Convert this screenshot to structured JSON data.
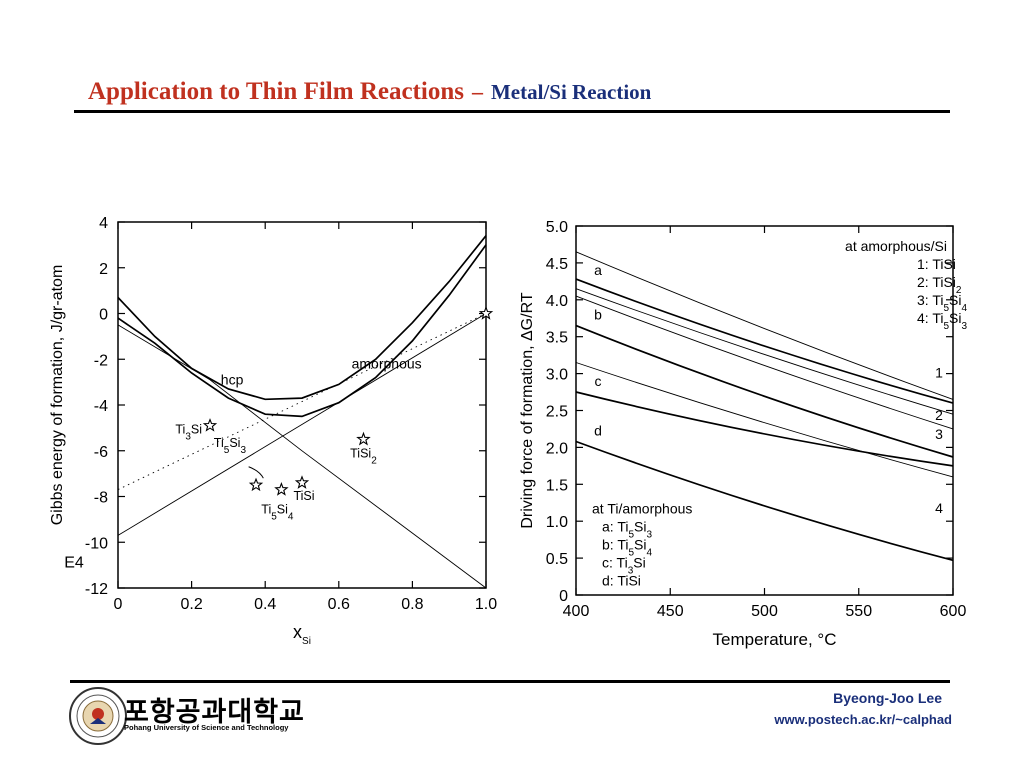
{
  "header": {
    "title_main": "Application to Thin Film Reactions",
    "title_dash": "–",
    "title_sub": "Metal/Si Reaction"
  },
  "footer": {
    "university_korean": "포항공과대학교",
    "university_english": "Pohang University of Science and Technology",
    "author": "Byeong-Joo Lee",
    "website": "www.postech.ac.kr/~calphad"
  },
  "chart_data": [
    {
      "type": "line",
      "title": "",
      "xlabel_main": "x",
      "xlabel_sub": "Si",
      "ylabel": "Gibbs energy of formation, J/gr-atom",
      "scale_label": "E4",
      "xlim": [
        0,
        1.0
      ],
      "ylim": [
        -12,
        4
      ],
      "x_ticks": [
        "0",
        "0.2",
        "0.4",
        "0.6",
        "0.8",
        "1.0"
      ],
      "y_ticks": [
        "4",
        "2",
        "0",
        "-2",
        "-4",
        "-6",
        "-8",
        "-10",
        "-12"
      ],
      "series": [
        {
          "style": "solid",
          "points": [
            [
              0,
              0.7
            ],
            [
              0.1,
              -1.0
            ],
            [
              0.2,
              -2.4
            ],
            [
              0.3,
              -3.3
            ],
            [
              0.4,
              -3.75
            ],
            [
              0.5,
              -3.7
            ],
            [
              0.6,
              -3.1
            ],
            [
              0.7,
              -2.0
            ],
            [
              0.8,
              -0.4
            ],
            [
              0.9,
              1.4
            ],
            [
              1.0,
              3.4
            ]
          ]
        },
        {
          "style": "solid",
          "points": [
            [
              0,
              -0.2
            ],
            [
              0.1,
              -1.3
            ],
            [
              0.2,
              -2.6
            ],
            [
              0.3,
              -3.7
            ],
            [
              0.4,
              -4.4
            ],
            [
              0.5,
              -4.5
            ],
            [
              0.6,
              -3.9
            ],
            [
              0.7,
              -2.8
            ],
            [
              0.8,
              -1.2
            ],
            [
              0.9,
              0.8
            ],
            [
              1.0,
              3.0
            ]
          ]
        },
        {
          "style": "thin",
          "points": [
            [
              0,
              -0.5
            ],
            [
              0.25,
              -2.9
            ],
            [
              0.5,
              -6.0
            ],
            [
              0.75,
              -9.0
            ],
            [
              1.0,
              -12.0
            ]
          ]
        },
        {
          "style": "thin",
          "points": [
            [
              0,
              -9.7
            ],
            [
              1.0,
              0
            ]
          ]
        },
        {
          "style": "dotted",
          "points": [
            [
              0,
              -7.7
            ],
            [
              1.0,
              0
            ]
          ]
        }
      ],
      "annotations": [
        {
          "text": "hcp",
          "x": 0.31,
          "y": -3.1
        },
        {
          "text": "amorphous",
          "x": 0.73,
          "y": -2.4
        }
      ],
      "compounds": [
        {
          "name": "Ti",
          "sub": "3",
          "name2": "Si",
          "sub2": "",
          "x": 0.25,
          "y": -4.9
        },
        {
          "name": "TiSi",
          "sub": "2",
          "name2": "",
          "sub2": "",
          "x": 0.667,
          "y": -5.5
        },
        {
          "name": "TiSi",
          "sub": "",
          "name2": "",
          "sub2": "",
          "x": 0.5,
          "y": -7.4
        },
        {
          "name": "Ti",
          "sub": "5",
          "name2": "Si",
          "sub2": "4",
          "x": 0.444,
          "y": -7.7
        },
        {
          "name": "Ti",
          "sub": "5",
          "name2": "Si",
          "sub2": "3",
          "x": 0.375,
          "y": -7.5
        },
        {
          "name": "",
          "sub": "",
          "name2": "",
          "sub2": "",
          "x": 1.0,
          "y": 0
        }
      ]
    },
    {
      "type": "line",
      "title": "",
      "xlabel": "Temperature, °C",
      "ylabel": "Driving force of formation, ΔG/RT",
      "xlim": [
        400,
        600
      ],
      "ylim": [
        0,
        5.0
      ],
      "x_ticks": [
        "400",
        "450",
        "500",
        "550",
        "600"
      ],
      "y_ticks": [
        "5.0",
        "4.5",
        "4.0",
        "3.5",
        "3.0",
        "2.5",
        "2.0",
        "1.5",
        "1.0",
        "0.5",
        "0"
      ],
      "series": [
        {
          "name": "1",
          "style": "thin",
          "values": [
            [
              400,
              4.65
            ],
            [
              600,
              2.65
            ]
          ]
        },
        {
          "name": "2",
          "style": "thin",
          "values": [
            [
              400,
              4.15
            ],
            [
              600,
              2.45
            ]
          ]
        },
        {
          "name": "3",
          "style": "thin",
          "values": [
            [
              400,
              4.05
            ],
            [
              600,
              2.25
            ]
          ]
        },
        {
          "name": "4",
          "style": "thin",
          "values": [
            [
              400,
              3.15
            ],
            [
              600,
              1.6
            ]
          ]
        },
        {
          "name": "a",
          "style": "thick",
          "values": [
            [
              400,
              4.28
            ],
            [
              600,
              2.6
            ]
          ]
        },
        {
          "name": "b",
          "style": "thick",
          "values": [
            [
              400,
              3.65
            ],
            [
              600,
              1.87
            ]
          ]
        },
        {
          "name": "c",
          "style": "thick",
          "values": [
            [
              400,
              2.75
            ],
            [
              600,
              1.75
            ]
          ]
        },
        {
          "name": "d",
          "style": "thick",
          "values": [
            [
              400,
              2.08
            ],
            [
              600,
              0.47
            ]
          ]
        }
      ],
      "legend_amorphous_si": {
        "heading": "at amorphous/Si",
        "items": [
          {
            "key": "1:",
            "parts": [
              {
                "t": "TiSi"
              }
            ]
          },
          {
            "key": "2:",
            "parts": [
              {
                "t": "TiSi"
              },
              {
                "s": "2"
              }
            ]
          },
          {
            "key": "3:",
            "parts": [
              {
                "t": "Ti"
              },
              {
                "s": "5"
              },
              {
                "t": "Si"
              },
              {
                "s": "4"
              }
            ]
          },
          {
            "key": "4:",
            "parts": [
              {
                "t": "Ti"
              },
              {
                "s": "5"
              },
              {
                "t": "Si"
              },
              {
                "s": "3"
              }
            ]
          }
        ]
      },
      "legend_ti_amorphous": {
        "heading": "at Ti/amorphous",
        "items": [
          {
            "key": "a:",
            "parts": [
              {
                "t": "Ti"
              },
              {
                "s": "5"
              },
              {
                "t": "Si"
              },
              {
                "s": "3"
              }
            ]
          },
          {
            "key": "b:",
            "parts": [
              {
                "t": "Ti"
              },
              {
                "s": "5"
              },
              {
                "t": "Si"
              },
              {
                "s": "4"
              }
            ]
          },
          {
            "key": "c:",
            "parts": [
              {
                "t": "Ti"
              },
              {
                "s": "3"
              },
              {
                "t": "Si"
              }
            ]
          },
          {
            "key": "d:",
            "parts": [
              {
                "t": "TiSi"
              }
            ]
          }
        ]
      }
    }
  ]
}
